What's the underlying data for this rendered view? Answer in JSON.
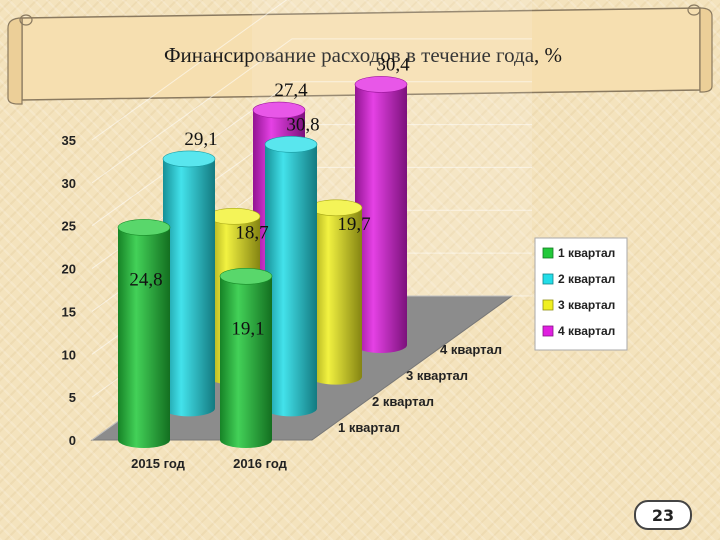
{
  "slide": {
    "title": "Финансирование расходов в течение года, %",
    "page_number": "23"
  },
  "colors": {
    "q1": "#22c93a",
    "q2": "#22dde8",
    "q3": "#f0f020",
    "q4": "#e01fe0",
    "background": "#f4e3bd",
    "floor": "#8c8c8c"
  },
  "chart_data": {
    "type": "bar",
    "style": "3d-cylinder",
    "categories": [
      "2015 год",
      "2016 год"
    ],
    "depth_categories": [
      "1 квартал",
      "2 квартал",
      "3 квартал",
      "4 квартал"
    ],
    "series": [
      {
        "name": "1 квартал",
        "values": [
          24.8,
          19.1
        ],
        "labels": [
          "24,8",
          "19,1"
        ],
        "color": "#22c93a"
      },
      {
        "name": "2 квартал",
        "values": [
          29.1,
          30.8
        ],
        "labels": [
          "29,1",
          "30,8"
        ],
        "color": "#22dde8"
      },
      {
        "name": "3 квартал",
        "values": [
          18.7,
          19.7
        ],
        "labels": [
          "18,7",
          "19,7"
        ],
        "color": "#f0f020"
      },
      {
        "name": "4 квартал",
        "values": [
          27.4,
          30.4
        ],
        "labels": [
          "27,4",
          "30,4"
        ],
        "color": "#e01fe0"
      }
    ],
    "y_ticks": [
      "0",
      "5",
      "10",
      "15",
      "20",
      "25",
      "30",
      "35"
    ],
    "ylim": [
      0,
      35
    ],
    "grid": true,
    "legend_position": "right",
    "title": "Финансирование расходов в течение года, %"
  }
}
